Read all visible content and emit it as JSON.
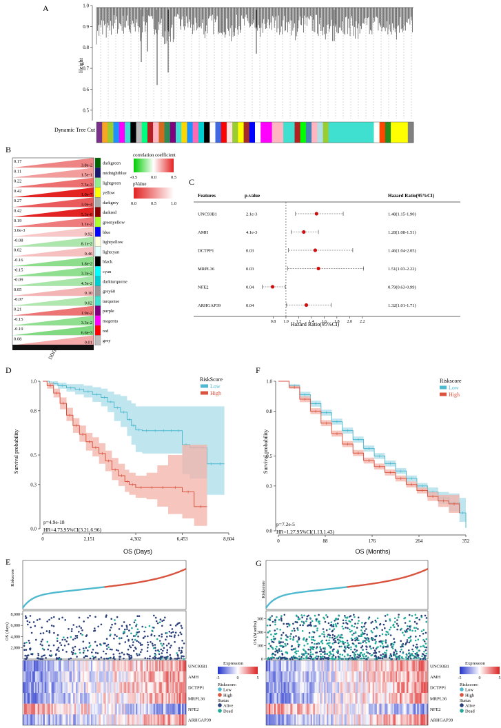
{
  "panel_labels": {
    "A": "A",
    "B": "B",
    "C": "C",
    "D": "D",
    "E": "E",
    "F": "F",
    "G": "G"
  },
  "colors": {
    "low": "#4fb9cf",
    "high": "#d9533f",
    "red": "#e32222",
    "green": "#23c023",
    "low_band": "#a9dde9",
    "high_band": "#f3b2a8",
    "forest_dot": "#cc1010"
  },
  "chart_data": [
    {
      "id": "A",
      "type": "dendrogram",
      "ylabel": "Height",
      "yticks": [
        "1.0",
        "0.9",
        "0.8",
        "0.7",
        "0.6",
        "0.5"
      ],
      "ylim": [
        0.45,
        1.0
      ],
      "colorbar_label": "Dynamic Tree Cut",
      "module_colors": [
        "#7a2f8a",
        "#f5a623",
        "#9acd32",
        "#1e90ff",
        "#ff00ff",
        "#40e0d0",
        "#000000",
        "#bbbbbb",
        "#00ff7f",
        "#b22222",
        "#ffb6c1",
        "#d2691e",
        "#2e8b57",
        "#800080",
        "#40e0d0",
        "#ffd700",
        "#1e90ff",
        "#ff69b4",
        "#00ced1",
        "#000000",
        "#ffffff",
        "#4169e1",
        "#ff0000",
        "#ffe4e1",
        "#9acd32",
        "#ffff00",
        "#a52a2a",
        "#0000ff",
        "#ffffff",
        "#ff00ff",
        "#ff00ff",
        "#ffb6c1",
        "#ffb6c1",
        "#40e0d0",
        "#40e0d0",
        "#b22222",
        "#00ff00",
        "#4682b4",
        "#ffb6c1",
        "#b0e0e6",
        "#9acd32",
        "#40e0d0",
        "#40e0d0",
        "#40e0d0",
        "#40e0d0",
        "#40e0d0",
        "#40e0d0",
        "#40e0d0",
        "#40e0d0",
        "#ffffff",
        "#ff4500",
        "#228b22",
        "#ffff00",
        "#ffff00",
        "#ffff00",
        "#808080"
      ]
    },
    {
      "id": "B",
      "type": "heatmap",
      "xlabel": "DDIT3",
      "rows": [
        {
          "module": "darkgreen",
          "color": "#006400",
          "cor": "0.17",
          "p": "3.8e-2"
        },
        {
          "module": "midnightblue",
          "color": "#191970",
          "cor": "0.11",
          "p": "1.5e-1"
        },
        {
          "module": "lightgreen",
          "color": "#90ee90",
          "cor": "0.22",
          "p": "7.5e-3"
        },
        {
          "module": "yellow",
          "color": "#ffff00",
          "cor": "0.42",
          "p": "1.0e-7"
        },
        {
          "module": "darkgrey",
          "color": "#a9a9a9",
          "cor": "0.27",
          "p": "3.0e-4"
        },
        {
          "module": "darkred",
          "color": "#8b0000",
          "cor": "0.42",
          "p": "5.3e-8"
        },
        {
          "module": "greenyellow",
          "color": "#adff2f",
          "cor": "0.19",
          "p": "1.1e-2"
        },
        {
          "module": "blue",
          "color": "#0000ff",
          "cor": "3.0e-3",
          "p": "0.92"
        },
        {
          "module": "lightyellow",
          "color": "#ffffe0",
          "cor": "-0.08",
          "p": "8.1e-2"
        },
        {
          "module": "lightcyan",
          "color": "#e0ffff",
          "cor": "0.02",
          "p": "0.46"
        },
        {
          "module": "black",
          "color": "#000000",
          "cor": "-0.16",
          "p": "1.8e-2"
        },
        {
          "module": "cyan",
          "color": "#00ffff",
          "cor": "-0.15",
          "p": "3.3e-2"
        },
        {
          "module": "darkturquoise",
          "color": "#00ced1",
          "cor": "-0.09",
          "p": "4.5e-2"
        },
        {
          "module": "grey60",
          "color": "#999999",
          "cor": "0.05",
          "p": "0.10"
        },
        {
          "module": "turquoise",
          "color": "#40e0d0",
          "cor": "-0.07",
          "p": "0.02"
        },
        {
          "module": "purple",
          "color": "#800080",
          "cor": "0.21",
          "p": "1.9e-2"
        },
        {
          "module": "magenta",
          "color": "#ff00ff",
          "cor": "-0.15",
          "p": "3.3e-2"
        },
        {
          "module": "red",
          "color": "#ff0000",
          "cor": "-0.19",
          "p": "6.6e-3"
        },
        {
          "module": "grey",
          "color": "#bebebe",
          "cor": "0.08",
          "p": "0.01"
        }
      ],
      "legend_cor_title": "correlation coefficient",
      "legend_cor_ticks": [
        "-0.5",
        "0.0",
        "0.5"
      ],
      "legend_p_title": "pValue",
      "legend_p_ticks": [
        "0.0",
        "0.5",
        "1.0"
      ]
    },
    {
      "id": "C",
      "type": "forest",
      "headers": {
        "feature": "Features",
        "pvalue": "p-value",
        "hr": "Hazard Ratio(95%CI)"
      },
      "xlabel": "Hazard Ratio(95%CI)",
      "xticks": [
        0.8,
        1.0,
        1.2,
        1.4,
        1.6,
        1.8,
        2.0,
        2.2
      ],
      "xlim": [
        0.6,
        2.3
      ],
      "ref": 1.0,
      "rows": [
        {
          "feature": "UNC93B1",
          "p": "2.1e-3",
          "hr": 1.48,
          "lo": 1.15,
          "hi": 1.9,
          "label": "1.48(1.15-1.90)"
        },
        {
          "feature": "AMH",
          "p": "4.1e-3",
          "hr": 1.28,
          "lo": 1.08,
          "hi": 1.51,
          "label": "1.28(1.08-1.51)"
        },
        {
          "feature": "DCTPP1",
          "p": "0.03",
          "hr": 1.46,
          "lo": 1.04,
          "hi": 2.05,
          "label": "1.46(1.04-2.05)"
        },
        {
          "feature": "MRPL36",
          "p": "0.03",
          "hr": 1.51,
          "lo": 1.03,
          "hi": 2.22,
          "label": "1.51(1.03-2.22)"
        },
        {
          "feature": "NFE2",
          "p": "0.04",
          "hr": 0.79,
          "lo": 0.63,
          "hi": 0.99,
          "label": "0.79(0.63-0.99)"
        },
        {
          "feature": "ARHGAP39",
          "p": "0.04",
          "hr": 1.32,
          "lo": 1.01,
          "hi": 1.71,
          "label": "1.32(1.01-1.71)"
        }
      ]
    },
    {
      "id": "D",
      "type": "line",
      "xlabel": "OS (Days)",
      "ylabel": "Survival probability",
      "xticks": [
        0,
        2151,
        4302,
        6453,
        8604
      ],
      "xtick_labels": [
        "0",
        "2,151",
        "4,302",
        "6,453",
        "8,604"
      ],
      "yticks": [
        0.0,
        0.3,
        0.5,
        0.8,
        1.0
      ],
      "ytick_labels": [
        "0.0",
        "0.3",
        "0.5",
        "0.8",
        "1.0"
      ],
      "xlim": [
        0,
        8604
      ],
      "ylim": [
        0,
        1.0
      ],
      "legend_title": "RiskScore",
      "legend_items": [
        "Low",
        "High"
      ],
      "pvalue": "p=4.9e-18",
      "hr": "HR=4.73,95%CI(3.21,6.96)",
      "series": [
        {
          "name": "Low",
          "x": [
            0,
            300,
            700,
            1100,
            1500,
            1900,
            2300,
            2700,
            3000,
            3300,
            3600,
            3900,
            4100,
            4300,
            4600,
            5000,
            5400,
            5800,
            6100,
            6453,
            6800,
            7200,
            7600,
            8000,
            8400
          ],
          "y": [
            1.0,
            0.985,
            0.97,
            0.955,
            0.945,
            0.93,
            0.91,
            0.89,
            0.86,
            0.82,
            0.79,
            0.74,
            0.7,
            0.67,
            0.665,
            0.665,
            0.665,
            0.665,
            0.665,
            0.57,
            0.55,
            0.55,
            0.44,
            0.44,
            0.44
          ],
          "lo": [
            1.0,
            0.97,
            0.95,
            0.93,
            0.91,
            0.89,
            0.86,
            0.83,
            0.79,
            0.73,
            0.69,
            0.63,
            0.57,
            0.52,
            0.51,
            0.51,
            0.51,
            0.51,
            0.51,
            0.37,
            0.34,
            0.34,
            0.23,
            0.23,
            0.23
          ],
          "hi": [
            1.0,
            1.0,
            0.99,
            0.98,
            0.98,
            0.97,
            0.96,
            0.95,
            0.93,
            0.91,
            0.9,
            0.87,
            0.85,
            0.83,
            0.83,
            0.83,
            0.83,
            0.83,
            0.83,
            0.83,
            0.83,
            0.83,
            0.83,
            0.83,
            0.83
          ]
        },
        {
          "name": "High",
          "x": [
            0,
            200,
            500,
            800,
            1100,
            1400,
            1700,
            2000,
            2300,
            2600,
            2900,
            3200,
            3500,
            3800,
            4000,
            4300,
            4800,
            5300,
            5800,
            6453,
            7000,
            7600
          ],
          "y": [
            1.0,
            0.97,
            0.92,
            0.85,
            0.77,
            0.7,
            0.64,
            0.59,
            0.55,
            0.51,
            0.46,
            0.4,
            0.36,
            0.32,
            0.3,
            0.28,
            0.28,
            0.28,
            0.28,
            0.25,
            0.15,
            0.15
          ],
          "lo": [
            1.0,
            0.95,
            0.89,
            0.81,
            0.73,
            0.65,
            0.59,
            0.53,
            0.49,
            0.44,
            0.39,
            0.33,
            0.29,
            0.25,
            0.23,
            0.21,
            0.2,
            0.15,
            0.1,
            0.07,
            0.02,
            0.02
          ],
          "hi": [
            1.0,
            0.99,
            0.95,
            0.89,
            0.82,
            0.75,
            0.7,
            0.65,
            0.62,
            0.58,
            0.53,
            0.48,
            0.44,
            0.4,
            0.38,
            0.36,
            0.38,
            0.43,
            0.5,
            0.57,
            0.57,
            0.57
          ]
        }
      ]
    },
    {
      "id": "F",
      "type": "line",
      "xlabel": "OS (Months)",
      "ylabel": "Survival probability",
      "xticks": [
        0,
        88,
        176,
        264,
        352
      ],
      "xtick_labels": [
        "0",
        "88",
        "176",
        "264",
        "352"
      ],
      "yticks": [
        0.0,
        0.3,
        0.5,
        0.8,
        1.0
      ],
      "ytick_labels": [
        "0.0",
        "0.3",
        "0.5",
        "0.8",
        "1.0"
      ],
      "xlim": [
        0,
        352
      ],
      "ylim": [
        0,
        1.0
      ],
      "legend_title": "Riskscore",
      "legend_items": [
        "Low",
        "High"
      ],
      "pvalue": "p=7.2e-5",
      "hr": "HR=1.27,95%CI(1.13,1.43)",
      "series": [
        {
          "name": "Low",
          "x": [
            0,
            20,
            40,
            60,
            80,
            100,
            120,
            140,
            160,
            180,
            200,
            220,
            240,
            260,
            280,
            300,
            320,
            340,
            352
          ],
          "y": [
            1.0,
            0.97,
            0.91,
            0.85,
            0.79,
            0.73,
            0.67,
            0.61,
            0.55,
            0.5,
            0.45,
            0.4,
            0.35,
            0.3,
            0.26,
            0.22,
            0.19,
            0.12,
            0.02
          ],
          "lo": [
            1.0,
            0.96,
            0.89,
            0.83,
            0.77,
            0.71,
            0.65,
            0.59,
            0.53,
            0.48,
            0.43,
            0.38,
            0.33,
            0.28,
            0.23,
            0.18,
            0.13,
            0.06,
            0.0
          ],
          "hi": [
            1.0,
            0.98,
            0.93,
            0.87,
            0.81,
            0.75,
            0.69,
            0.63,
            0.57,
            0.52,
            0.47,
            0.42,
            0.37,
            0.32,
            0.29,
            0.26,
            0.25,
            0.22,
            0.15
          ]
        },
        {
          "name": "High",
          "x": [
            0,
            20,
            40,
            60,
            80,
            100,
            120,
            140,
            160,
            180,
            200,
            220,
            240,
            260,
            280,
            300,
            320,
            340
          ],
          "y": [
            1.0,
            0.96,
            0.88,
            0.8,
            0.72,
            0.65,
            0.58,
            0.52,
            0.47,
            0.43,
            0.39,
            0.35,
            0.31,
            0.27,
            0.23,
            0.2,
            0.18,
            0.12
          ],
          "lo": [
            1.0,
            0.95,
            0.86,
            0.78,
            0.7,
            0.63,
            0.56,
            0.5,
            0.45,
            0.41,
            0.37,
            0.33,
            0.29,
            0.25,
            0.2,
            0.16,
            0.12,
            0.03
          ],
          "hi": [
            1.0,
            0.97,
            0.9,
            0.82,
            0.74,
            0.67,
            0.6,
            0.54,
            0.49,
            0.45,
            0.41,
            0.37,
            0.33,
            0.29,
            0.26,
            0.24,
            0.24,
            0.27
          ]
        }
      ]
    },
    {
      "id": "E",
      "type": "scatter",
      "riskscore_ylabel": "Riskscore",
      "os_ylabel": "OS (days)",
      "os_yticks": [
        2000,
        4000,
        6000,
        8000
      ],
      "os_ytick_labels": [
        "2,000",
        "4,000",
        "6,000",
        "8,000"
      ],
      "os_ylim": [
        0,
        8600
      ],
      "genes": [
        "UNC93B1",
        "AMH",
        "DCTPP1",
        "MRPL36",
        "NFE2",
        "ARHGAP39"
      ],
      "legend_expression_title": "Expression",
      "legend_expression_ticks": [
        "-5",
        "0",
        "5"
      ],
      "legend_risk_title": "Riskscore:",
      "legend_risk_items": [
        "Low",
        "High"
      ],
      "legend_status_title": "Status",
      "legend_status_items": [
        "Alive",
        "Dead"
      ]
    },
    {
      "id": "G",
      "type": "scatter",
      "riskscore_ylabel": "Riskscore",
      "os_ylabel": "OS (Months)",
      "os_yticks": [
        0,
        100,
        200,
        300
      ],
      "os_ytick_labels": [
        "0",
        "100",
        "200",
        "300"
      ],
      "os_ylim": [
        0,
        360
      ],
      "genes": [
        "UNC93B1",
        "AMH",
        "DCTPP1",
        "MRPL36",
        "NFE2",
        "ARHGAP39"
      ],
      "legend_expression_title": "Expression",
      "legend_expression_ticks": [
        "-5",
        "0",
        "5"
      ],
      "legend_risk_title": "Riskscore:",
      "legend_risk_items": [
        "Low",
        "High"
      ],
      "legend_status_title": "Status",
      "legend_status_items": [
        "Alive",
        "Dead"
      ]
    }
  ]
}
